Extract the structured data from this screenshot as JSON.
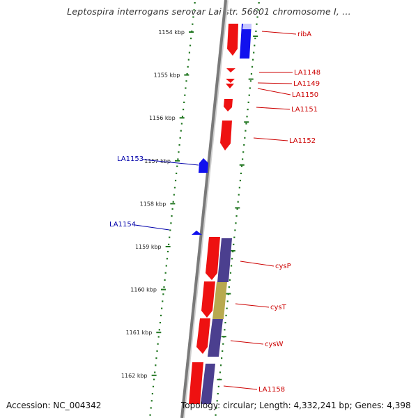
{
  "title": "Leptospira interrogans serovar Lai str. 56601 chromosome I, ...",
  "footer": {
    "accession": "Accession: NC_004342",
    "info": "Topology: circular; Length: 4,332,241 bp; Genes: 4,398"
  },
  "ticks": [
    "1154 kbp",
    "1155 kbp",
    "1156 kbp",
    "1157 kbp",
    "1158 kbp",
    "1159 kbp",
    "1160 kbp",
    "1161 kbp",
    "1162 kbp"
  ],
  "genes_right": [
    {
      "label": "ribA",
      "color": "#cc0000"
    },
    {
      "label": "LA1148",
      "color": "#cc0000"
    },
    {
      "label": "LA1149",
      "color": "#cc0000"
    },
    {
      "label": "LA1150",
      "color": "#cc0000"
    },
    {
      "label": "LA1151",
      "color": "#cc0000"
    },
    {
      "label": "LA1152",
      "color": "#cc0000"
    },
    {
      "label": "cysP",
      "color": "#cc0000"
    },
    {
      "label": "cysT",
      "color": "#cc0000"
    },
    {
      "label": "cysW",
      "color": "#cc0000"
    },
    {
      "label": "LA1158",
      "color": "#cc0000"
    }
  ],
  "genes_left": [
    {
      "label": "LA1153",
      "color": "#0000aa"
    },
    {
      "label": "LA1154",
      "color": "#0000aa"
    }
  ],
  "colors": {
    "forward_gene": "#ee0000",
    "reverse_gene": "#0000ee",
    "cog_purple": "#4b3f8f",
    "cog_olive": "#b8a94f",
    "backbone": "#888888",
    "tick_green": "#227722"
  }
}
